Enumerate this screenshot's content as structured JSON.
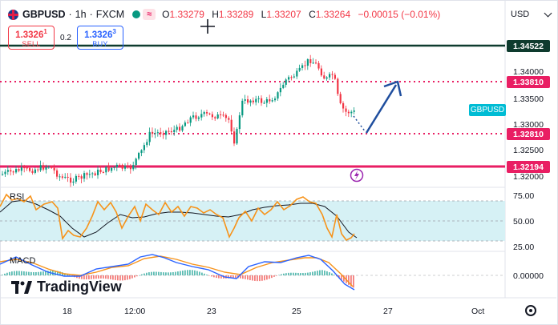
{
  "header": {
    "symbol": "GBPUSD",
    "sep1": "·",
    "timeframe": "1h",
    "sep2": "·",
    "exchange": "FXCM",
    "ohlc": {
      "o_label": "O",
      "o": "1.33279",
      "h_label": "H",
      "h": "1.33289",
      "l_label": "L",
      "l": "1.33207",
      "c_label": "C",
      "c": "1.33264",
      "change": "−0.00015 (−0.01%)"
    },
    "wave_icon": "≈"
  },
  "trade": {
    "sell_price_main": "1.3326",
    "sell_price_sup": "1",
    "sell_label": "SELL",
    "spread": "0.2",
    "buy_price_main": "1.3326",
    "buy_price_sup": "3",
    "buy_label": "BUY"
  },
  "currency": "USD",
  "price_axis": [
    "1.34000",
    "1.33500",
    "1.33000",
    "1.32500",
    "1.32000"
  ],
  "price_tags": {
    "line_top": "1.34522",
    "dotted_top": "1.33810",
    "dotted_bottom": "1.32810",
    "red_line": "1.32194",
    "symbol_tag": "GBPUSD"
  },
  "rsi": {
    "label": "RSI",
    "levels": [
      "75.00",
      "50.00",
      "25.00"
    ]
  },
  "macd": {
    "label": "MACD",
    "level": "0.00000"
  },
  "x_axis": [
    "18",
    "12:00",
    "23",
    "25",
    "27",
    "Oct"
  ],
  "brand": "TradingView",
  "colors": {
    "up": "#089981",
    "down": "#f23645",
    "rsi_line": "#f7931a",
    "level_dark": "#0e3b2e",
    "level_red": "#e91e63",
    "arrow": "#1f4e9e",
    "rsi_band": "#d6f1f5",
    "macd_line": "#2962ff"
  },
  "icons": [
    "crosshair-icon",
    "lightning-icon",
    "gear-icon",
    "chevron-down-icon"
  ]
}
